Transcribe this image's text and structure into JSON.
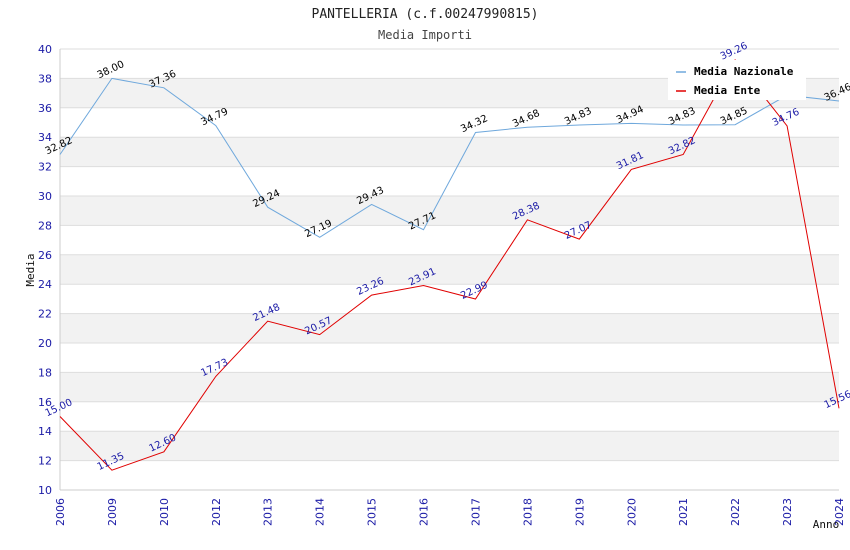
{
  "chart_data": {
    "type": "line",
    "title": "PANTELLERIA (c.f.00247990815)",
    "subtitle": "Media Importi",
    "xlabel": "Anno",
    "ylabel": "Media",
    "ylim": [
      10,
      40
    ],
    "yticks": [
      10,
      12,
      14,
      16,
      18,
      20,
      22,
      24,
      26,
      28,
      30,
      32,
      34,
      36,
      38,
      40
    ],
    "categories": [
      "2006",
      "2009",
      "2010",
      "2012",
      "2013",
      "2014",
      "2015",
      "2016",
      "2017",
      "2018",
      "2019",
      "2020",
      "2021",
      "2022",
      "2023",
      "2024"
    ],
    "series": [
      {
        "name": "Media Nazionale",
        "color": "#6fa8dc",
        "values": [
          32.82,
          38.0,
          37.36,
          34.79,
          29.24,
          27.19,
          29.43,
          27.71,
          34.32,
          34.68,
          34.83,
          34.94,
          34.83,
          34.85,
          36.86,
          36.46
        ],
        "labels": [
          "32.82",
          "38.00",
          "37.36",
          "34.79",
          "29.24",
          "27.19",
          "29.43",
          "27.71",
          "34.32",
          "34.68",
          "34.83",
          "34.94",
          "34.83",
          "34.85",
          "",
          "36.46"
        ]
      },
      {
        "name": "Media Ente",
        "color": "#e00000",
        "values": [
          15.0,
          11.35,
          12.6,
          17.73,
          21.48,
          20.57,
          23.26,
          23.91,
          22.99,
          28.38,
          27.07,
          31.81,
          32.82,
          39.26,
          34.76,
          15.56
        ],
        "labels": [
          "15.00",
          "11.35",
          "12.60",
          "17.73",
          "21.48",
          "20.57",
          "23.26",
          "23.91",
          "22.99",
          "28.38",
          "27.07",
          "31.81",
          "32.82",
          "39.26",
          "34.76",
          "15.56"
        ]
      }
    ],
    "legend_position": "top-right",
    "grid": true
  }
}
